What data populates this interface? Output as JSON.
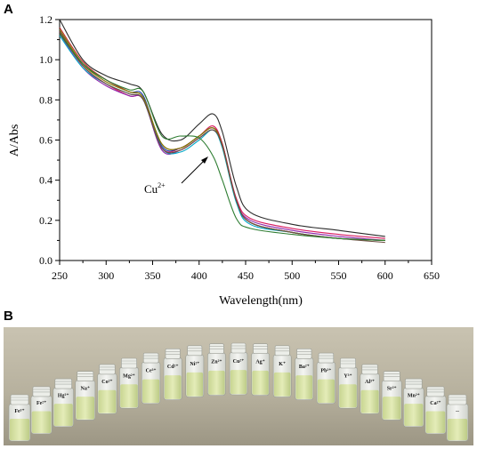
{
  "panels": {
    "a": "A",
    "b": "B"
  },
  "chart_data": {
    "type": "line",
    "xlabel": "Wavelength(nm)",
    "ylabel": "A/Abs",
    "xlim": [
      250,
      650
    ],
    "ylim": [
      0.0,
      1.2
    ],
    "xticks": [
      "250",
      "300",
      "350",
      "400",
      "450",
      "500",
      "550",
      "600",
      "650"
    ],
    "yticks": [
      "0.0",
      "0.2",
      "0.4",
      "0.6",
      "0.8",
      "1.0",
      "1.2"
    ],
    "x": [
      250,
      275,
      300,
      325,
      340,
      360,
      380,
      400,
      415,
      425,
      440,
      455,
      500,
      550,
      600
    ],
    "series": [
      {
        "color": "#2b2b2b",
        "values": [
          1.2,
          1.0,
          0.92,
          0.88,
          0.84,
          0.63,
          0.6,
          0.68,
          0.73,
          0.64,
          0.37,
          0.24,
          0.18,
          0.15,
          0.12
        ]
      },
      {
        "color": "#d81b60",
        "values": [
          1.14,
          0.97,
          0.88,
          0.82,
          0.8,
          0.56,
          0.56,
          0.62,
          0.67,
          0.58,
          0.31,
          0.21,
          0.16,
          0.13,
          0.11
        ]
      },
      {
        "color": "#1e3fb0",
        "values": [
          1.15,
          0.98,
          0.9,
          0.84,
          0.82,
          0.57,
          0.56,
          0.62,
          0.66,
          0.58,
          0.3,
          0.19,
          0.14,
          0.11,
          0.1
        ]
      },
      {
        "color": "#8e24aa",
        "values": [
          1.13,
          0.96,
          0.87,
          0.82,
          0.8,
          0.55,
          0.55,
          0.61,
          0.65,
          0.57,
          0.3,
          0.2,
          0.15,
          0.12,
          0.1
        ]
      },
      {
        "color": "#c62828",
        "values": [
          1.16,
          0.99,
          0.9,
          0.84,
          0.81,
          0.58,
          0.56,
          0.62,
          0.66,
          0.58,
          0.3,
          0.19,
          0.14,
          0.11,
          0.1
        ]
      },
      {
        "color": "#00a8c8",
        "values": [
          1.12,
          0.96,
          0.88,
          0.83,
          0.8,
          0.56,
          0.54,
          0.6,
          0.65,
          0.56,
          0.29,
          0.18,
          0.14,
          0.11,
          0.1
        ]
      },
      {
        "color": "#808000",
        "values": [
          1.15,
          0.98,
          0.89,
          0.84,
          0.81,
          0.58,
          0.56,
          0.62,
          0.66,
          0.57,
          0.3,
          0.19,
          0.14,
          0.11,
          0.1
        ]
      },
      {
        "color": "#6d4c41",
        "values": [
          1.14,
          0.97,
          0.88,
          0.83,
          0.8,
          0.56,
          0.55,
          0.61,
          0.65,
          0.57,
          0.3,
          0.19,
          0.14,
          0.11,
          0.09
        ]
      },
      {
        "color": "#2e7d32",
        "values": [
          1.13,
          0.98,
          0.9,
          0.85,
          0.84,
          0.62,
          0.62,
          0.61,
          0.52,
          0.4,
          0.21,
          0.16,
          0.13,
          0.11,
          0.1
        ]
      }
    ],
    "annotation": {
      "text": "Cu",
      "superscript": "2+"
    }
  },
  "vials": [
    "Fe³⁺",
    "Fe²⁺",
    "Hg²⁺",
    "Na⁺",
    "Co²⁺",
    "Mg²⁺",
    "Ce³⁺",
    "Cd²⁺",
    "Ni²⁺",
    "Zn²⁺",
    "Cu²⁺",
    "Ag⁺",
    "K⁺",
    "Ba²⁺",
    "Pb²⁺",
    "Y³⁺",
    "Al³⁺",
    "Sr²⁺",
    "Mn²⁺",
    "Ca²⁺",
    "--"
  ]
}
